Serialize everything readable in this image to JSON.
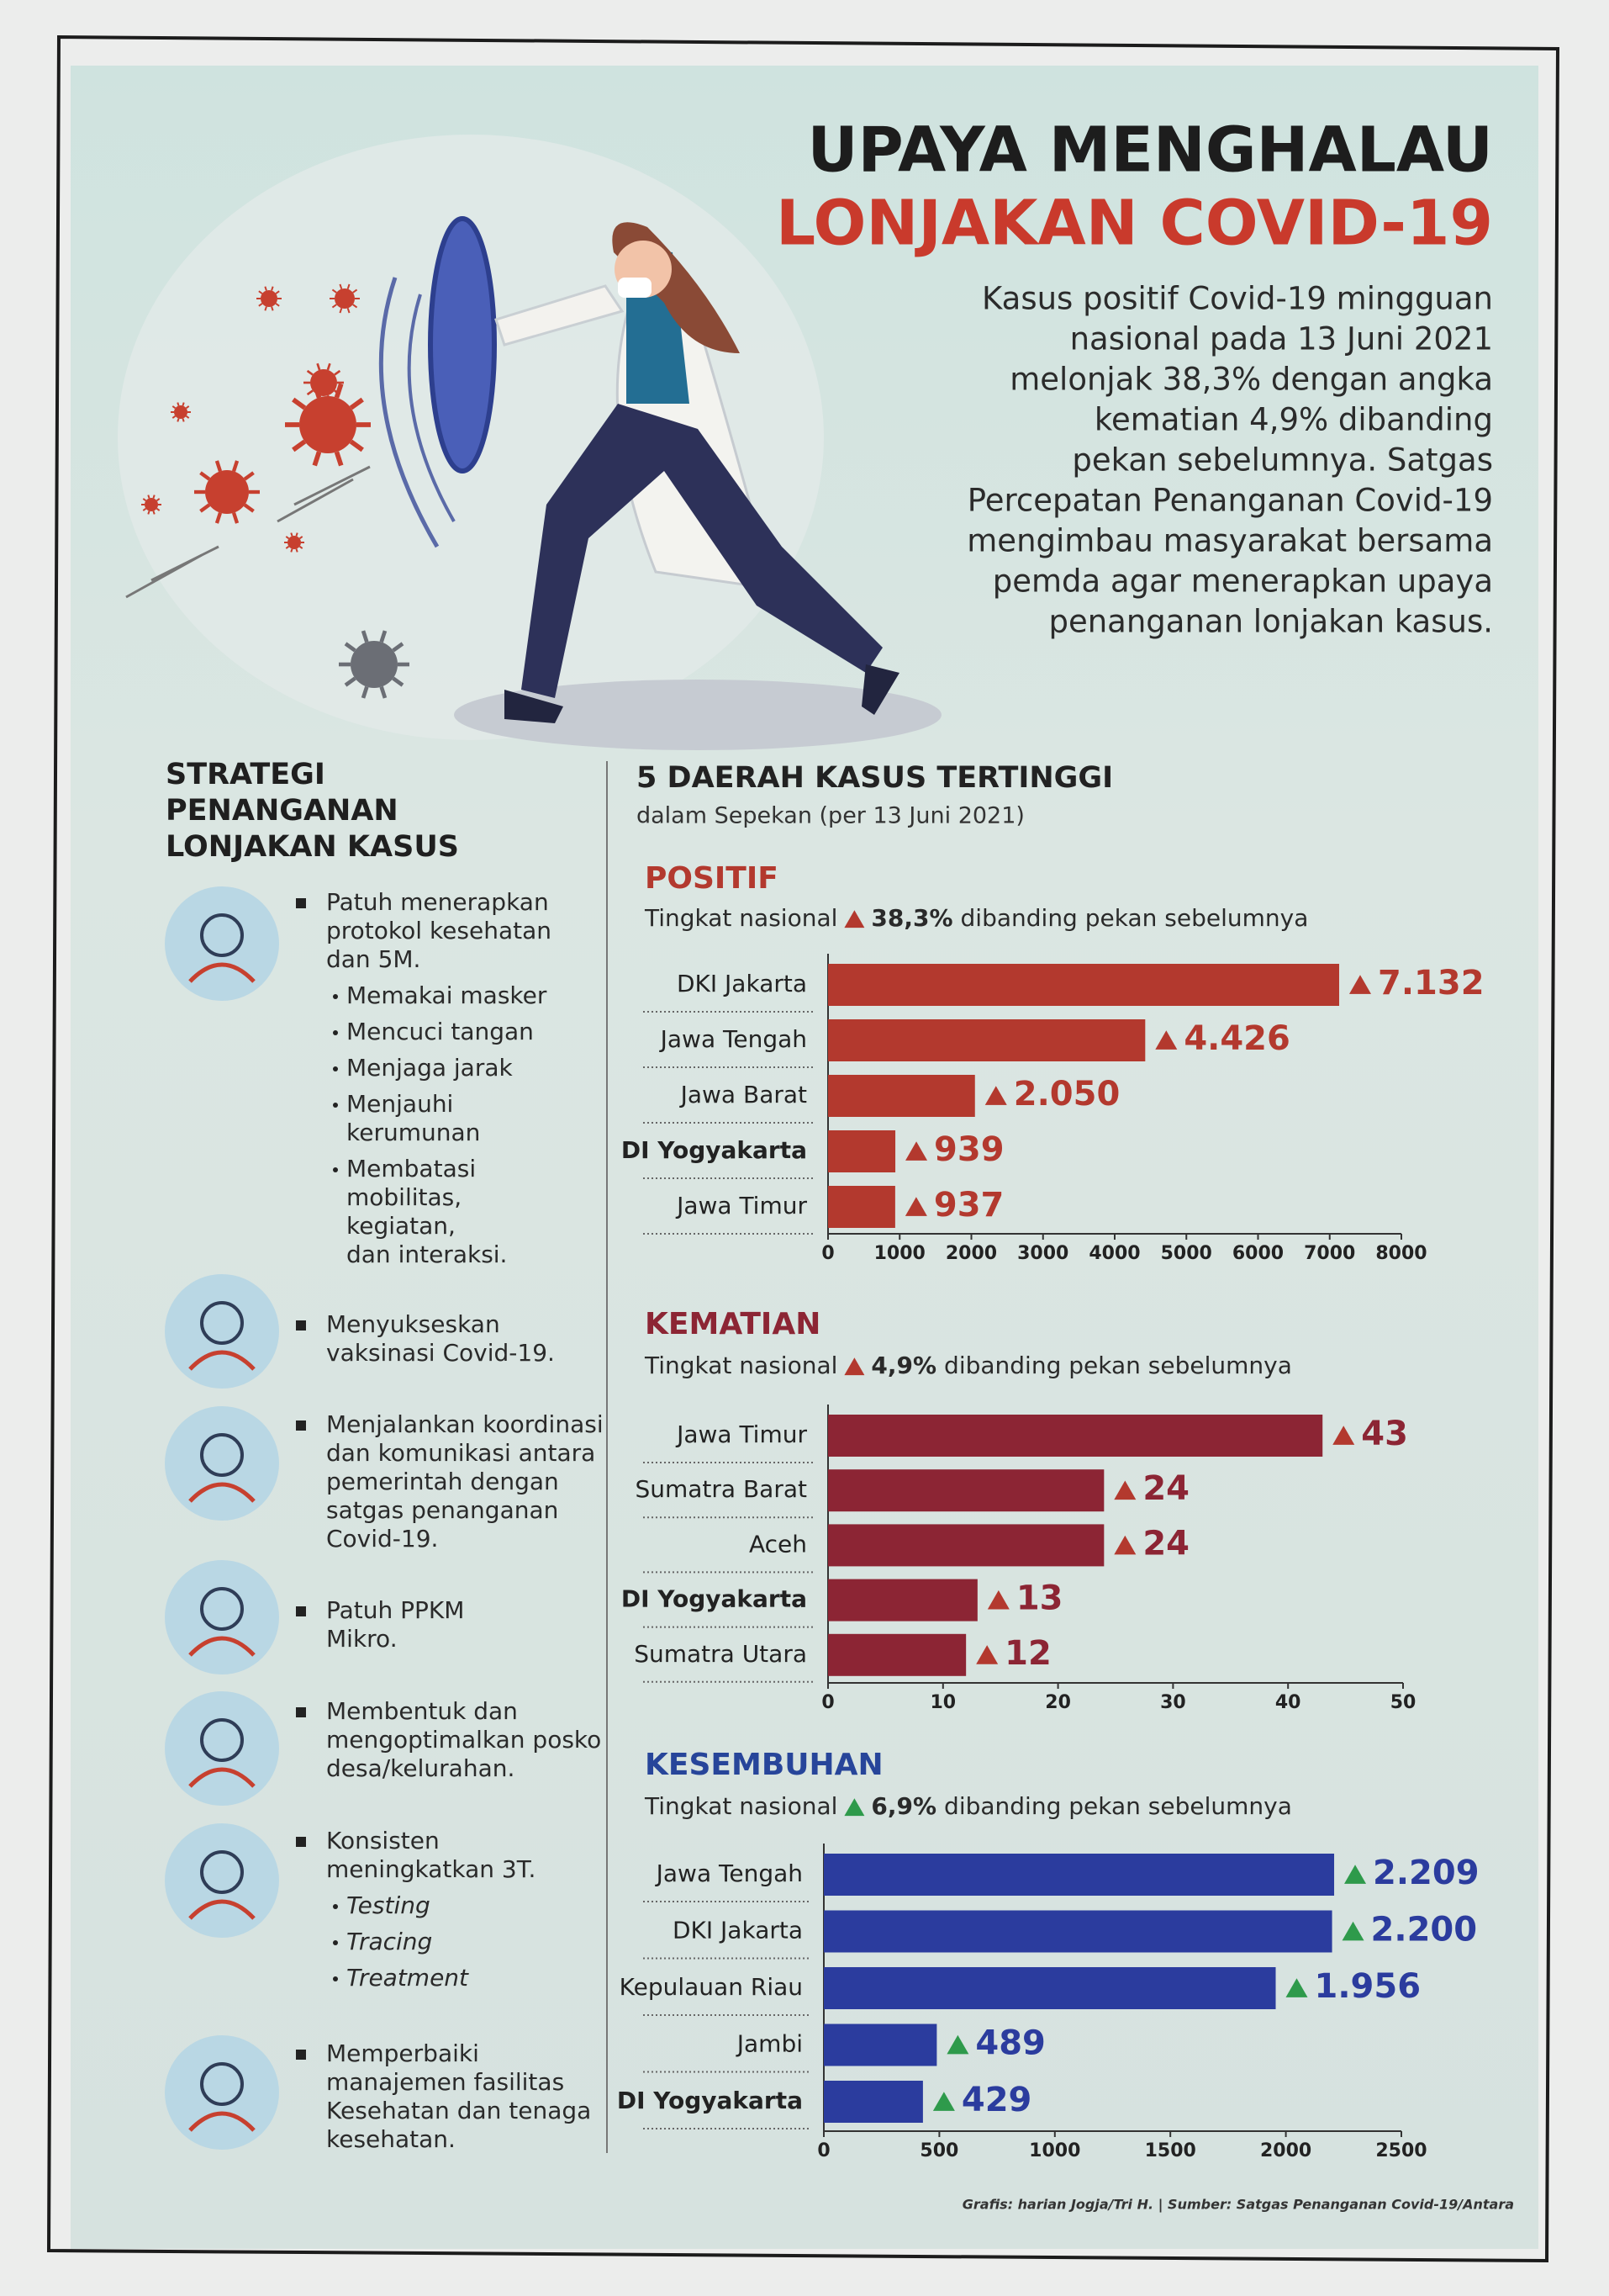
{
  "header": {
    "title_line1": "UPAYA MENGHALAU",
    "title_line2": "LONJAKAN COVID-19",
    "intro": [
      "Kasus positif Covid-19 mingguan",
      "nasional pada 13 Juni 2021",
      "melonjak 38,3% dengan angka",
      "kematian 4,9% dibanding",
      "pekan sebelumnya. Satgas",
      "Percepatan Penanganan Covid-19",
      "mengimbau masyarakat bersama",
      "pemda agar menerapkan upaya",
      "penanganan lonjakan kasus."
    ]
  },
  "strategy": {
    "heading": [
      "STRATEGI",
      "PENANGANAN",
      "LONJAKAN KASUS"
    ],
    "items": [
      {
        "lines": [
          "Patuh menerapkan",
          "protokol kesehatan",
          "dan 5M."
        ],
        "subitems": [
          [
            "Memakai masker"
          ],
          [
            "Mencuci tangan"
          ],
          [
            "Menjaga jarak"
          ],
          [
            "Menjauhi",
            "kerumunan"
          ],
          [
            "Membatasi",
            "mobilitas,",
            "kegiatan,",
            "dan interaksi."
          ]
        ]
      },
      {
        "lines": [
          "Menyukseskan",
          "vaksinasi Covid-19."
        ]
      },
      {
        "lines": [
          "Menjalankan koordinasi",
          "dan komunikasi antara",
          "pemerintah dengan",
          "satgas penanganan",
          "Covid-19."
        ]
      },
      {
        "lines": [
          "Patuh PPKM",
          "Mikro."
        ]
      },
      {
        "lines": [
          "Membentuk dan",
          "mengoptimalkan posko",
          "desa/kelurahan."
        ]
      },
      {
        "lines": [
          "Konsisten",
          "meningkatkan 3T."
        ],
        "subitems": [
          [
            "Testing"
          ],
          [
            "Tracing"
          ],
          [
            "Treatment"
          ]
        ],
        "subitem_style": "italic"
      },
      {
        "lines": [
          "Memperbaiki",
          "manajemen fasilitas",
          "Kesehatan dan tenaga",
          "kesehatan."
        ]
      }
    ]
  },
  "section": {
    "title": "5 DAERAH KASUS TERTINGGI",
    "subtitle": "dalam Sepekan (per 13 Juni 2021)"
  },
  "chart_data": [
    {
      "type": "bar",
      "orientation": "horizontal",
      "title": "POSITIF",
      "note": {
        "lead": "Tingkat nasional",
        "change": "38,3%",
        "tail": "dibanding pekan sebelumnya"
      },
      "categories": [
        "DKI Jakarta",
        "Jawa Tengah",
        "Jawa Barat",
        "DI Yogyakarta",
        "Jawa Timur"
      ],
      "values": [
        7132,
        4426,
        2050,
        939,
        937
      ],
      "value_labels": [
        "7.132",
        "4.426",
        "2.050",
        "939",
        "937"
      ],
      "color": "#b3392e",
      "title_color": "#b3392e",
      "marker_color": "#b3392e",
      "xlim": [
        0,
        8000
      ],
      "xticks": [
        0,
        1000,
        2000,
        3000,
        4000,
        5000,
        6000,
        7000,
        8000
      ],
      "bold_categories": [
        3
      ]
    },
    {
      "type": "bar",
      "orientation": "horizontal",
      "title": "KEMATIAN",
      "note": {
        "lead": "Tingkat nasional",
        "change": "4,9%",
        "tail": "dibanding pekan sebelumnya"
      },
      "categories": [
        "Jawa Timur",
        "Sumatra Barat",
        "Aceh",
        "DI Yogyakarta",
        "Sumatra Utara"
      ],
      "values": [
        43,
        24,
        24,
        13,
        12
      ],
      "color": "#8c2534",
      "title_color": "#8c2534",
      "marker_color": "#b3392e",
      "xlim": [
        0,
        50
      ],
      "xticks": [
        0,
        10,
        20,
        30,
        40,
        50
      ],
      "bold_categories": [
        3
      ]
    },
    {
      "type": "bar",
      "orientation": "horizontal",
      "title": "KESEMBUHAN",
      "note": {
        "lead": "Tingkat nasional",
        "change": "6,9%",
        "tail": "dibanding pekan sebelumnya"
      },
      "categories": [
        "Jawa Tengah",
        "DKI Jakarta",
        "Kepulauan Riau",
        "Jambi",
        "DI Yogyakarta"
      ],
      "values": [
        2209,
        2200,
        1956,
        489,
        429
      ],
      "value_labels": [
        "2.209",
        "2.200",
        "1.956",
        "489",
        "429"
      ],
      "color": "#2b3c9e",
      "title_color": "#27459a",
      "marker_color": "#2e9a4b",
      "xlim": [
        0,
        2500
      ],
      "xticks": [
        0,
        500,
        1000,
        1500,
        2000,
        2500
      ],
      "bold_categories": [
        4
      ]
    }
  ],
  "credit": "Grafis: harian Jogja/Tri H. | Sumber: Satgas Penanganan Covid-19/Antara"
}
